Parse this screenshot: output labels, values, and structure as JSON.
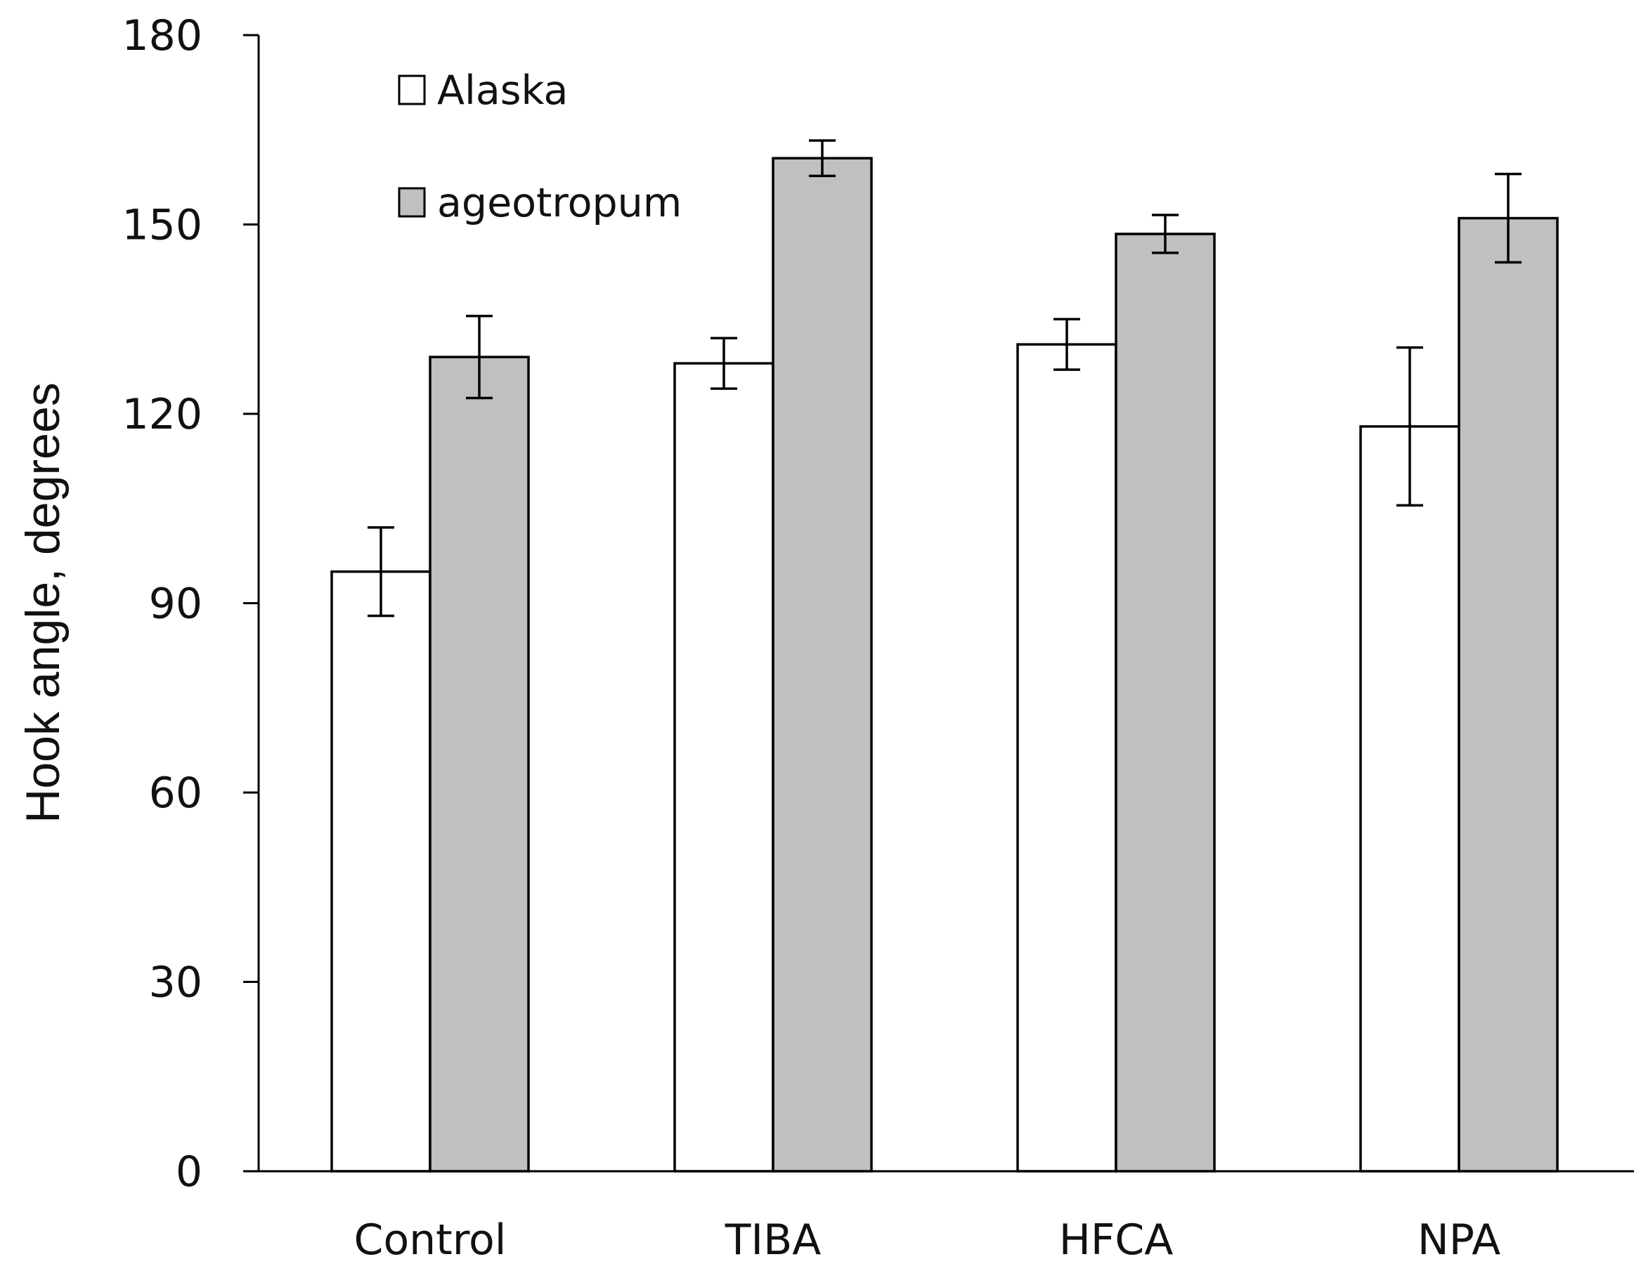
{
  "chart_data": {
    "type": "bar",
    "title": "",
    "xlabel": "",
    "ylabel": "Hook angle, degrees",
    "ylim": [
      0,
      180
    ],
    "yticks": [
      0,
      30,
      60,
      90,
      120,
      150,
      180
    ],
    "grid": false,
    "legend_position": "top-left",
    "categories": [
      "Control",
      "TIBA",
      "HFCA",
      "NPA"
    ],
    "series": [
      {
        "name": "Alaska",
        "color": "#ffffff",
        "values": [
          95,
          128,
          131,
          118
        ],
        "errors": [
          7,
          4,
          4,
          12.5
        ]
      },
      {
        "name": "ageotropum",
        "color": "#c0c0c0",
        "values": [
          129,
          160.5,
          148.5,
          151
        ],
        "errors": [
          6.5,
          2.8,
          3,
          7
        ]
      }
    ]
  }
}
